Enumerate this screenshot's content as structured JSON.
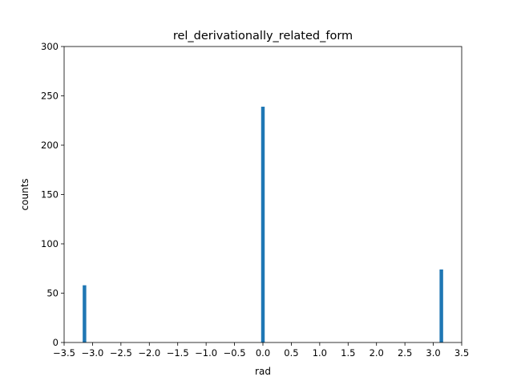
{
  "chart_data": {
    "type": "bar",
    "title": "rel_derivationally_related_form",
    "xlabel": "rad",
    "ylabel": "counts",
    "xlim": [
      -3.5,
      3.5
    ],
    "ylim": [
      0,
      300
    ],
    "xticks": [
      -3.5,
      -3.0,
      -2.5,
      -2.0,
      -1.5,
      -1.0,
      -0.5,
      0.0,
      0.5,
      1.0,
      1.5,
      2.0,
      2.5,
      3.0,
      3.5
    ],
    "xtick_labels": [
      "−3.5",
      "−3.0",
      "−2.5",
      "−2.0",
      "−1.5",
      "−1.0",
      "−0.5",
      "0.0",
      "0.5",
      "1.0",
      "1.5",
      "2.0",
      "2.5",
      "3.0",
      "3.5"
    ],
    "yticks": [
      0,
      50,
      100,
      150,
      200,
      250,
      300
    ],
    "ytick_labels": [
      "0",
      "50",
      "100",
      "150",
      "200",
      "250",
      "300"
    ],
    "bar_color": "#1f77b4",
    "grid": false,
    "bars": [
      {
        "x": -3.1416,
        "width": 0.0628,
        "value": 58
      },
      {
        "x": 0.0,
        "width": 0.0628,
        "value": 239
      },
      {
        "x": 3.1416,
        "width": 0.0628,
        "value": 74
      }
    ]
  }
}
